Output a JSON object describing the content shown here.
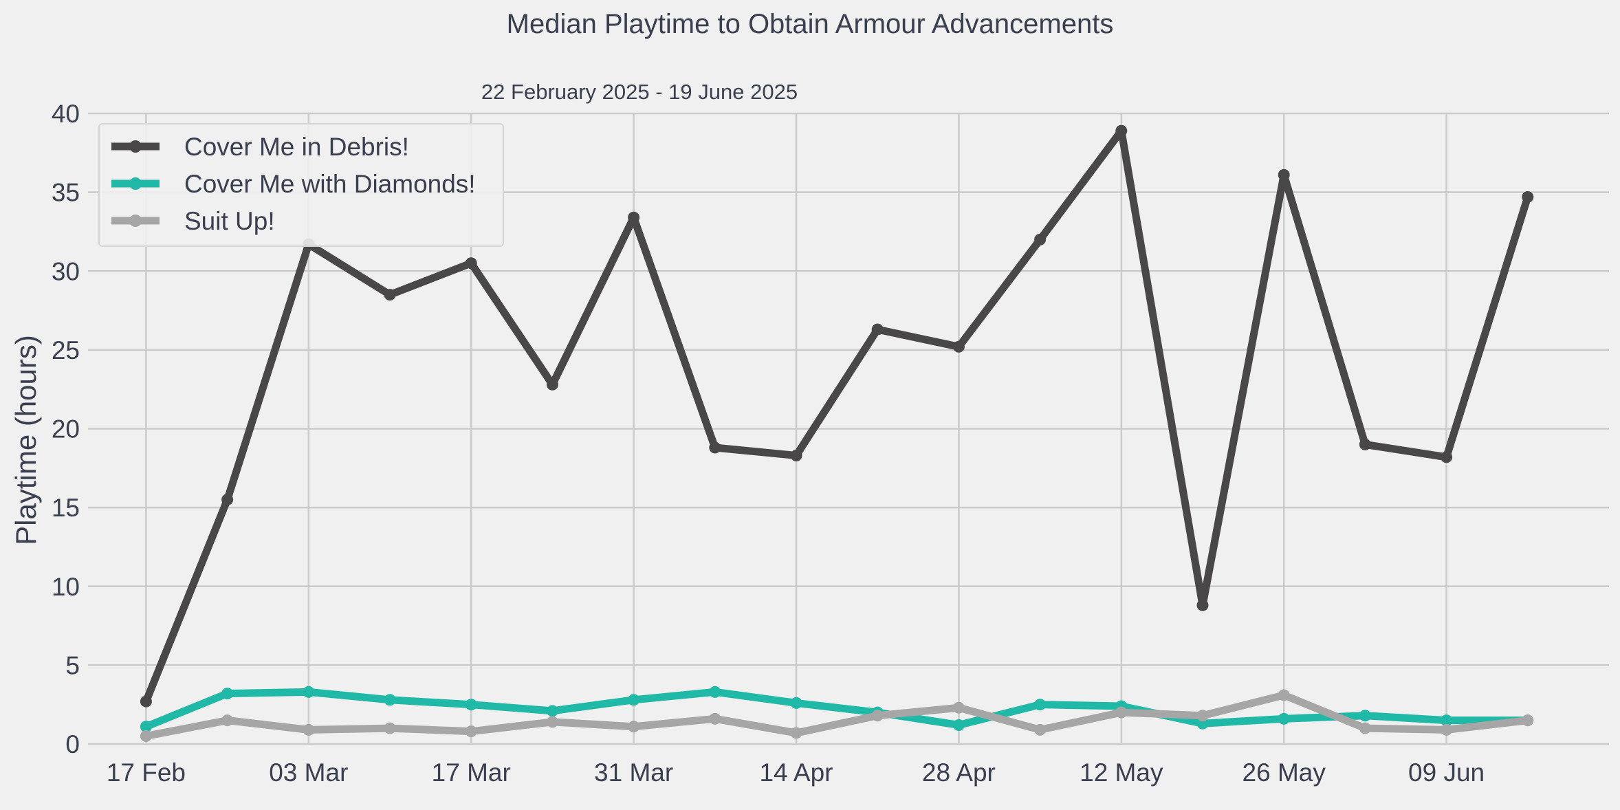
{
  "chart_data": {
    "type": "line",
    "title": "Median Playtime to Obtain Armour Advancements",
    "subtitle": "22 February 2025 - 19 June 2025",
    "xlabel": "",
    "ylabel": "Playtime (hours)",
    "ylim": [
      0,
      40
    ],
    "yticks": [
      0,
      5,
      10,
      15,
      20,
      25,
      30,
      35,
      40
    ],
    "xlim": [
      "2025-02-12",
      "2025-06-23"
    ],
    "xticks": [
      {
        "date": "2025-02-17",
        "label": "17 Feb"
      },
      {
        "date": "2025-03-03",
        "label": "03 Mar"
      },
      {
        "date": "2025-03-17",
        "label": "17 Mar"
      },
      {
        "date": "2025-03-31",
        "label": "31 Mar"
      },
      {
        "date": "2025-04-14",
        "label": "14 Apr"
      },
      {
        "date": "2025-04-28",
        "label": "28 Apr"
      },
      {
        "date": "2025-05-12",
        "label": "12 May"
      },
      {
        "date": "2025-05-26",
        "label": "26 May"
      },
      {
        "date": "2025-06-09",
        "label": "09 Jun"
      }
    ],
    "grid": true,
    "legend_position": "top-left",
    "x": [
      "2025-02-17",
      "2025-02-24",
      "2025-03-03",
      "2025-03-10",
      "2025-03-17",
      "2025-03-24",
      "2025-03-31",
      "2025-04-07",
      "2025-04-14",
      "2025-04-21",
      "2025-04-28",
      "2025-05-05",
      "2025-05-12",
      "2025-05-19",
      "2025-05-26",
      "2025-06-02",
      "2025-06-09",
      "2025-06-16"
    ],
    "series": [
      {
        "name": "Cover Me in Debris!",
        "color": "#4a4749",
        "values": [
          2.7,
          15.5,
          31.7,
          28.5,
          30.5,
          22.8,
          33.4,
          18.8,
          18.3,
          26.3,
          25.2,
          32.0,
          38.9,
          8.8,
          36.1,
          19.0,
          18.2,
          34.7
        ]
      },
      {
        "name": "Cover Me with Diamonds!",
        "color": "#20b8a7",
        "values": [
          1.1,
          3.2,
          3.3,
          2.8,
          2.5,
          2.1,
          2.8,
          3.3,
          2.6,
          2.0,
          1.2,
          2.5,
          2.4,
          1.3,
          1.6,
          1.8,
          1.5,
          1.5
        ]
      },
      {
        "name": "Suit Up!",
        "color": "#a6a6a6",
        "values": [
          0.5,
          1.5,
          0.9,
          1.0,
          0.8,
          1.4,
          1.1,
          1.6,
          0.7,
          1.8,
          2.3,
          0.9,
          2.0,
          1.8,
          3.1,
          1.0,
          0.9,
          1.5
        ]
      }
    ]
  }
}
